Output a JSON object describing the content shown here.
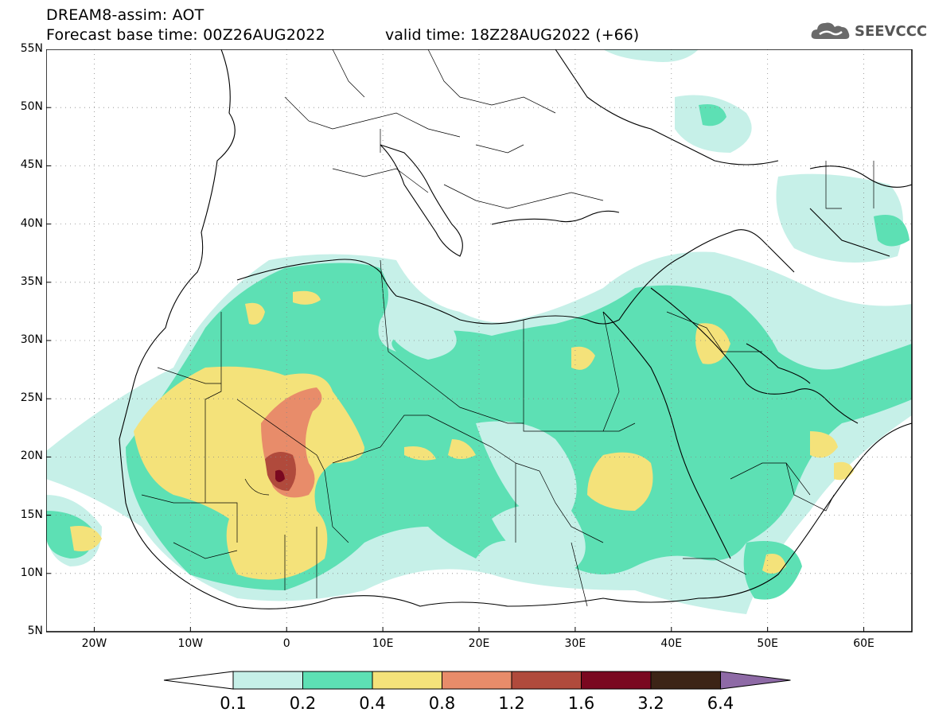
{
  "header": {
    "title": "DREAM8-assim: AOT",
    "base_time": "Forecast base time: 00Z26AUG2022",
    "valid_time": "valid time: 18Z28AUG2022 (+66)",
    "logo_text": "SEEVCCC",
    "logo_icon": "cloud-icon"
  },
  "map": {
    "lat_labels": [
      "55N",
      "50N",
      "45N",
      "40N",
      "35N",
      "30N",
      "25N",
      "20N",
      "15N",
      "10N",
      "5N"
    ],
    "lon_labels": [
      "20W",
      "10W",
      "0",
      "10E",
      "20E",
      "30E",
      "40E",
      "50E",
      "60E"
    ],
    "lat_range": [
      5,
      55
    ],
    "lon_range": [
      -25,
      65
    ],
    "grid": true
  },
  "colorbar": {
    "labels": [
      "0.1",
      "0.2",
      "0.4",
      "0.8",
      "1.2",
      "1.6",
      "3.2",
      "6.4"
    ],
    "colors": [
      "#ffffff",
      "#c6f0e8",
      "#5de0b4",
      "#f4e27a",
      "#e88c6a",
      "#b04a3c",
      "#7a0820",
      "#3c2416",
      "#8e6aa6"
    ]
  }
}
